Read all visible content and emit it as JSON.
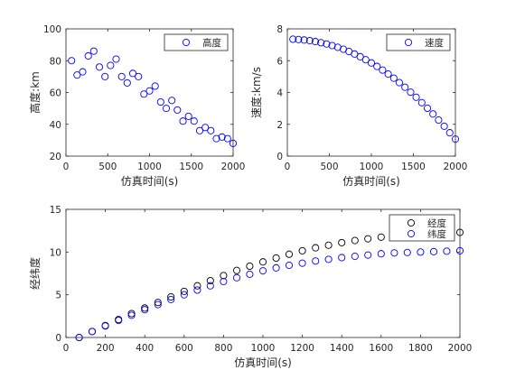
{
  "chart_data": [
    {
      "type": "scatter",
      "xlabel": "仿真时间(s)",
      "ylabel": "高度:km",
      "xlim": [
        0,
        2000
      ],
      "ylim": [
        20,
        100
      ],
      "xticks": [
        0,
        500,
        1000,
        1500,
        2000
      ],
      "yticks": [
        20,
        40,
        60,
        80,
        100
      ],
      "legend_position": "top-right",
      "grid": false,
      "series": [
        {
          "name": "高度",
          "color": "#0000ff",
          "x": [
            67,
            133,
            200,
            267,
            333,
            400,
            467,
            533,
            600,
            667,
            733,
            800,
            867,
            933,
            1000,
            1067,
            1133,
            1200,
            1267,
            1333,
            1400,
            1467,
            1533,
            1600,
            1667,
            1733,
            1800,
            1867,
            1933,
            2000
          ],
          "y": [
            80,
            71,
            73,
            83,
            86,
            76,
            70,
            77,
            81,
            70,
            66,
            72,
            70,
            59,
            61,
            64,
            54,
            50,
            55,
            49,
            42,
            45,
            42,
            36,
            38,
            36,
            31,
            32,
            31,
            28
          ]
        }
      ]
    },
    {
      "type": "scatter",
      "xlabel": "仿真时间(s)",
      "ylabel": "速度:km/s",
      "xlim": [
        0,
        2000
      ],
      "ylim": [
        0,
        8
      ],
      "xticks": [
        0,
        500,
        1000,
        1500,
        2000
      ],
      "yticks": [
        0,
        2,
        4,
        6,
        8
      ],
      "legend_position": "top-right",
      "grid": false,
      "series": [
        {
          "name": "速度",
          "color": "#0000ff",
          "x": [
            67,
            133,
            200,
            267,
            333,
            400,
            467,
            533,
            600,
            667,
            733,
            800,
            867,
            933,
            1000,
            1067,
            1133,
            1200,
            1267,
            1333,
            1400,
            1467,
            1533,
            1600,
            1667,
            1733,
            1800,
            1867,
            1933,
            2000
          ],
          "y": [
            7.35,
            7.33,
            7.3,
            7.26,
            7.2,
            7.13,
            7.05,
            6.95,
            6.84,
            6.72,
            6.58,
            6.42,
            6.25,
            6.06,
            5.86,
            5.64,
            5.41,
            5.16,
            4.9,
            4.62,
            4.33,
            4.02,
            3.7,
            3.36,
            3.01,
            2.65,
            2.27,
            1.88,
            1.47,
            1.07
          ]
        }
      ]
    },
    {
      "type": "scatter",
      "xlabel": "仿真时间(s)",
      "ylabel": "经纬度",
      "xlim": [
        0,
        2000
      ],
      "ylim": [
        0,
        15
      ],
      "xticks": [
        0,
        200,
        400,
        600,
        800,
        1000,
        1200,
        1400,
        1600,
        1800,
        2000
      ],
      "yticks": [
        0,
        5,
        10,
        15
      ],
      "legend_position": "top-right",
      "grid": false,
      "series": [
        {
          "name": "经度",
          "color": "#000000",
          "x": [
            67,
            133,
            200,
            267,
            333,
            400,
            467,
            533,
            600,
            667,
            733,
            800,
            867,
            933,
            1000,
            1067,
            1133,
            1200,
            1267,
            1333,
            1400,
            1467,
            1533,
            1600,
            1667,
            1733,
            1800,
            1867,
            1933,
            2000
          ],
          "y": [
            0.0,
            0.7,
            1.4,
            2.1,
            2.8,
            3.45,
            4.1,
            4.75,
            5.4,
            6.05,
            6.65,
            7.25,
            7.85,
            8.35,
            8.85,
            9.3,
            9.75,
            10.15,
            10.5,
            10.8,
            11.1,
            11.35,
            11.55,
            11.75,
            11.9,
            12.0,
            12.1,
            12.2,
            12.25,
            12.3
          ]
        },
        {
          "name": "纬度",
          "color": "#0000ff",
          "x": [
            67,
            133,
            200,
            267,
            333,
            400,
            467,
            533,
            600,
            667,
            733,
            800,
            867,
            933,
            1000,
            1067,
            1133,
            1200,
            1267,
            1333,
            1400,
            1467,
            1533,
            1600,
            1667,
            1733,
            1800,
            1867,
            1933,
            2000
          ],
          "y": [
            0.0,
            0.7,
            1.35,
            2.0,
            2.6,
            3.25,
            3.85,
            4.45,
            5.0,
            5.55,
            6.05,
            6.55,
            7.0,
            7.4,
            7.8,
            8.15,
            8.45,
            8.7,
            8.95,
            9.15,
            9.35,
            9.5,
            9.65,
            9.8,
            9.9,
            9.95,
            10.0,
            10.05,
            10.1,
            10.15
          ]
        }
      ]
    }
  ]
}
